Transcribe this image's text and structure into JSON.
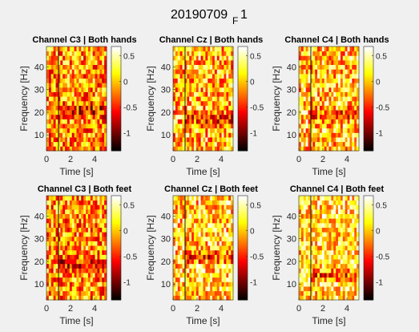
{
  "figure": {
    "title_main": "20190709",
    "title_sub": "F",
    "title_end": "1",
    "background": "#f0f0f0"
  },
  "chart_data": [
    {
      "type": "heatmap",
      "title": "Channel C3 | Both hands",
      "xlabel": "Time [s]",
      "ylabel": "Frequency [Hz]",
      "xlim": [
        0,
        5
      ],
      "ylim": [
        3,
        49
      ],
      "xticks": [
        "0",
        "2",
        "4"
      ],
      "yticks": [
        "10",
        "20",
        "30",
        "40"
      ],
      "colorbar_ticks": [
        "0.5",
        "0",
        "-0.5",
        "-1"
      ],
      "clim": [
        -1.35,
        0.68
      ],
      "cue_line_x": 1,
      "seed": 11,
      "mean": -0.15,
      "amp": 0.6,
      "dark_band": 21
    },
    {
      "type": "heatmap",
      "title": "Channel Cz | Both hands",
      "xlabel": "Time [s]",
      "ylabel": "Frequency [Hz]",
      "xlim": [
        0,
        5
      ],
      "ylim": [
        3,
        49
      ],
      "xticks": [
        "0",
        "2",
        "4"
      ],
      "yticks": [
        "10",
        "20",
        "30",
        "40"
      ],
      "colorbar_ticks": [
        "0.5",
        "0",
        "-0.5",
        "-1"
      ],
      "clim": [
        -1.35,
        0.68
      ],
      "cue_line_x": 1,
      "seed": 23,
      "mean": 0.0,
      "amp": 0.6,
      "dark_band": 17
    },
    {
      "type": "heatmap",
      "title": "Channel C4 | Both hands",
      "xlabel": "Time [s]",
      "ylabel": "Frequency [Hz]",
      "xlim": [
        0,
        5
      ],
      "ylim": [
        3,
        49
      ],
      "xticks": [
        "0",
        "2",
        "4"
      ],
      "yticks": [
        "10",
        "20",
        "30",
        "40"
      ],
      "colorbar_ticks": [
        "0.5",
        "0",
        "-0.5",
        "-1"
      ],
      "clim": [
        -1.35,
        0.68
      ],
      "cue_line_x": 1,
      "seed": 37,
      "mean": 0.05,
      "amp": 0.6,
      "dark_band": 19
    },
    {
      "type": "heatmap",
      "title": "Channel C3 | Both feet",
      "xlabel": "Time [s]",
      "ylabel": "Frequency [Hz]",
      "xlim": [
        0,
        5
      ],
      "ylim": [
        3,
        49
      ],
      "xticks": [
        "0",
        "2",
        "4"
      ],
      "yticks": [
        "10",
        "20",
        "30",
        "40"
      ],
      "colorbar_ticks": [
        "0.5",
        "0",
        "-0.5",
        "-1"
      ],
      "clim": [
        -1.35,
        0.68
      ],
      "cue_line_x": 1,
      "seed": 41,
      "mean": -0.15,
      "amp": 0.6,
      "dark_band": 19
    },
    {
      "type": "heatmap",
      "title": "Channel Cz | Both feet",
      "xlabel": "Time [s]",
      "ylabel": "Frequency [Hz]",
      "xlim": [
        0,
        5
      ],
      "ylim": [
        3,
        49
      ],
      "xticks": [
        "0",
        "2",
        "4"
      ],
      "yticks": [
        "10",
        "20",
        "30",
        "40"
      ],
      "colorbar_ticks": [
        "0.5",
        "0",
        "-0.5",
        "-1"
      ],
      "clim": [
        -1.35,
        0.68
      ],
      "cue_line_x": 1,
      "seed": 53,
      "mean": 0.1,
      "amp": 0.6,
      "dark_band": 22
    },
    {
      "type": "heatmap",
      "title": "Channel C4 | Both feet",
      "xlabel": "Time [s]",
      "ylabel": "Frequency [Hz]",
      "xlim": [
        0,
        5
      ],
      "ylim": [
        3,
        49
      ],
      "xticks": [
        "0",
        "2",
        "4"
      ],
      "yticks": [
        "10",
        "20",
        "30",
        "40"
      ],
      "colorbar_ticks": [
        "0.5",
        "0",
        "-0.5",
        "-1"
      ],
      "clim": [
        -1.35,
        0.68
      ],
      "cue_line_x": 1,
      "seed": 67,
      "mean": 0.15,
      "amp": 0.55,
      "dark_band": 14
    }
  ]
}
